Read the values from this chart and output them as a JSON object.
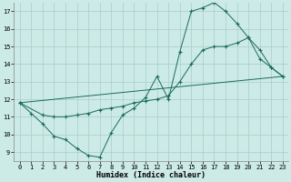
{
  "xlabel": "Humidex (Indice chaleur)",
  "background_color": "#cceae6",
  "grid_color": "#aaccca",
  "line_color": "#1a6b5a",
  "xlim": [
    -0.5,
    23.5
  ],
  "ylim": [
    8.5,
    17.5
  ],
  "xticks": [
    0,
    1,
    2,
    3,
    4,
    5,
    6,
    7,
    8,
    9,
    10,
    11,
    12,
    13,
    14,
    15,
    16,
    17,
    18,
    19,
    20,
    21,
    22,
    23
  ],
  "yticks": [
    9,
    10,
    11,
    12,
    13,
    14,
    15,
    16,
    17
  ],
  "line1_x": [
    0,
    1,
    2,
    3,
    4,
    5,
    6,
    7,
    8,
    9,
    10,
    11,
    12,
    13,
    14,
    15,
    16,
    17,
    18,
    19,
    20,
    21,
    22,
    23
  ],
  "line1_y": [
    11.8,
    11.2,
    10.6,
    9.9,
    9.7,
    9.2,
    8.8,
    8.7,
    10.1,
    11.1,
    11.5,
    12.1,
    13.3,
    12.0,
    14.7,
    17.0,
    17.2,
    17.5,
    17.0,
    16.3,
    15.5,
    14.3,
    13.8,
    13.3
  ],
  "line2_x": [
    0,
    2,
    3,
    4,
    5,
    6,
    7,
    8,
    9,
    10,
    11,
    12,
    13,
    14,
    15,
    16,
    17,
    18,
    19,
    20,
    21,
    22,
    23
  ],
  "line2_y": [
    11.8,
    11.1,
    11.0,
    11.0,
    11.1,
    11.2,
    11.4,
    11.5,
    11.6,
    11.8,
    11.9,
    12.0,
    12.2,
    13.0,
    14.0,
    14.8,
    15.0,
    15.0,
    15.2,
    15.5,
    14.8,
    13.8,
    13.3
  ],
  "line3_x": [
    0,
    23
  ],
  "line3_y": [
    11.8,
    13.3
  ]
}
